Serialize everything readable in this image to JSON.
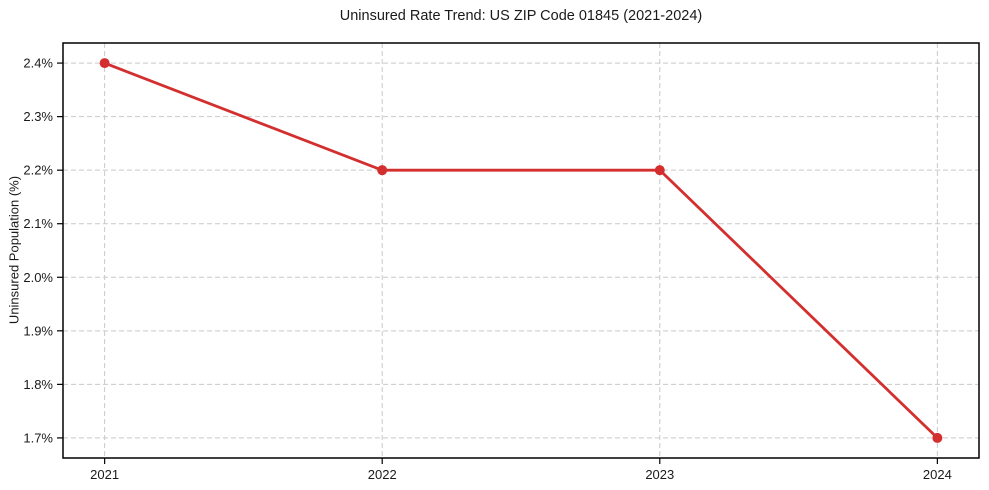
{
  "chart_data": {
    "type": "line",
    "title": "Uninsured Rate Trend: US ZIP Code 01845 (2021-2024)",
    "xlabel": "",
    "ylabel": "Uninsured Population (%)",
    "x": [
      2021,
      2022,
      2023,
      2024
    ],
    "x_tick_labels": [
      "2021",
      "2022",
      "2023",
      "2024"
    ],
    "series": [
      {
        "name": "Uninsured rate",
        "values": [
          2.4,
          2.2,
          2.2,
          1.7
        ]
      }
    ],
    "y_tick_values": [
      1.7,
      1.8,
      1.9,
      2.0,
      2.1,
      2.2,
      2.3,
      2.4
    ],
    "y_tick_labels": [
      "1.7%",
      "1.8%",
      "1.9%",
      "2.0%",
      "2.1%",
      "2.2%",
      "2.3%",
      "2.4%"
    ],
    "xlim": [
      2020.85,
      2024.15
    ],
    "ylim": [
      1.6625,
      2.4375
    ],
    "grid": true,
    "legend": false,
    "colors": {
      "line": "#d32f2f",
      "marker": "#d32f2f",
      "grid": "#c9c9c9",
      "spine": "#000000",
      "text": "#1a1a1a"
    }
  }
}
